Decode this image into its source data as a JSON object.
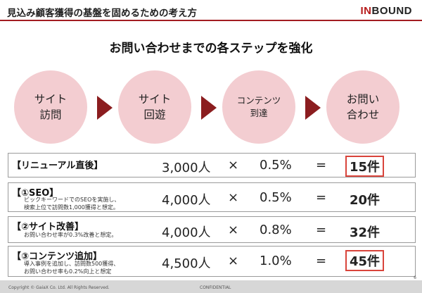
{
  "header": {
    "title": "見込み顧客獲得の基盤を固めるための考え方",
    "logo_prefix": "IN",
    "logo_suffix": "BOUND",
    "accent_color": "#a31d21"
  },
  "subtitle": "お問い合わせまでの各ステップを強化",
  "steps": [
    "サイト\n訪問",
    "サイト\n回遊",
    "コンテンツ\n到達",
    "お問い\n合わせ"
  ],
  "rows": [
    {
      "label": "【リニューアル直後】",
      "note": "",
      "visits": "3,000人",
      "times": "×",
      "rate": "0.5%",
      "equals": "=",
      "result": "15件",
      "highlight": true
    },
    {
      "label": "【①SEO】",
      "note": "ビックキーワードでのSEOを実施し、\n検索上位で訪問数1,000獲得と想定。",
      "visits": "4,000人",
      "times": "×",
      "rate": "0.5%",
      "equals": "=",
      "result": "20件",
      "highlight": false
    },
    {
      "label": "【②サイト改善】",
      "note": "お問い合わせ率が0.3%改善と想定。",
      "visits": "4,000人",
      "times": "×",
      "rate": "0.8%",
      "equals": "=",
      "result": "32件",
      "highlight": false
    },
    {
      "label": "【③コンテンツ追加】",
      "note": "導入事例を追加し、訪問数500獲得、\nお問い合わせ率も0.2%向上と想定",
      "visits": "4,500人",
      "times": "×",
      "rate": "1.0%",
      "equals": "=",
      "result": "45件",
      "highlight": true
    }
  ],
  "footer": {
    "copyright": "Copyright © GaiaX Co. Ltd.  All Rights Reserved.",
    "confidential": "CONFIDENTIAL",
    "page": "6"
  },
  "colors": {
    "circle": "#f3cdd1",
    "arrow": "#8b1d1f",
    "highlight_border": "#d9443b"
  }
}
